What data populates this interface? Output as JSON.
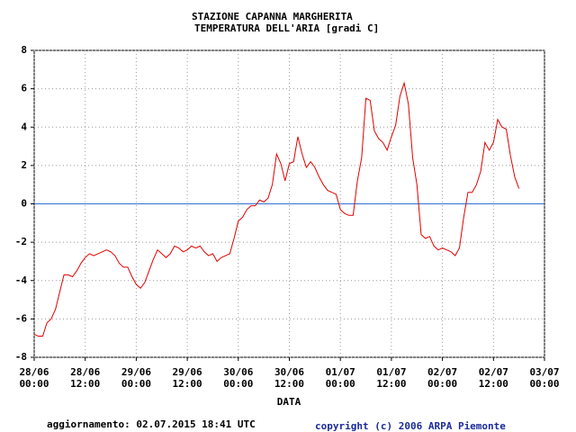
{
  "chart_data": {
    "type": "line",
    "title": "STAZIONE CAPANNA MARGHERITA",
    "subtitle": "TEMPERATURA DELL'ARIA [gradi C]",
    "x_label": "DATA",
    "footer_left": "aggiornamento: 02.07.2015 18:41 UTC",
    "footer_right": "copyright (c) 2006 ARPA Piemonte",
    "x": [
      "28/06 00:00",
      "28/06 01:00",
      "28/06 02:00",
      "28/06 03:00",
      "28/06 04:00",
      "28/06 05:00",
      "28/06 06:00",
      "28/06 07:00",
      "28/06 08:00",
      "28/06 09:00",
      "28/06 10:00",
      "28/06 11:00",
      "28/06 12:00",
      "28/06 13:00",
      "28/06 14:00",
      "28/06 15:00",
      "28/06 16:00",
      "28/06 17:00",
      "28/06 18:00",
      "28/06 19:00",
      "28/06 20:00",
      "28/06 21:00",
      "28/06 22:00",
      "28/06 23:00",
      "29/06 00:00",
      "29/06 01:00",
      "29/06 02:00",
      "29/06 03:00",
      "29/06 04:00",
      "29/06 05:00",
      "29/06 06:00",
      "29/06 07:00",
      "29/06 08:00",
      "29/06 09:00",
      "29/06 10:00",
      "29/06 11:00",
      "29/06 12:00",
      "29/06 13:00",
      "29/06 14:00",
      "29/06 15:00",
      "29/06 16:00",
      "29/06 17:00",
      "29/06 18:00",
      "29/06 19:00",
      "29/06 20:00",
      "29/06 21:00",
      "29/06 22:00",
      "29/06 23:00",
      "30/06 00:00",
      "30/06 01:00",
      "30/06 02:00",
      "30/06 03:00",
      "30/06 04:00",
      "30/06 05:00",
      "30/06 06:00",
      "30/06 07:00",
      "30/06 08:00",
      "30/06 09:00",
      "30/06 10:00",
      "30/06 11:00",
      "30/06 12:00",
      "30/06 13:00",
      "30/06 14:00",
      "30/06 15:00",
      "30/06 16:00",
      "30/06 17:00",
      "30/06 18:00",
      "30/06 19:00",
      "30/06 20:00",
      "30/06 21:00",
      "30/06 22:00",
      "30/06 23:00",
      "01/07 00:00",
      "01/07 01:00",
      "01/07 02:00",
      "01/07 03:00",
      "01/07 04:00",
      "01/07 05:00",
      "01/07 06:00",
      "01/07 07:00",
      "01/07 08:00",
      "01/07 09:00",
      "01/07 10:00",
      "01/07 11:00",
      "01/07 12:00",
      "01/07 13:00",
      "01/07 14:00",
      "01/07 15:00",
      "01/07 16:00",
      "01/07 17:00",
      "01/07 18:00",
      "01/07 19:00",
      "01/07 20:00",
      "01/07 21:00",
      "01/07 22:00",
      "01/07 23:00",
      "02/07 00:00",
      "02/07 01:00",
      "02/07 02:00",
      "02/07 03:00",
      "02/07 04:00",
      "02/07 05:00",
      "02/07 06:00",
      "02/07 07:00",
      "02/07 08:00",
      "02/07 09:00",
      "02/07 10:00",
      "02/07 11:00",
      "02/07 12:00",
      "02/07 13:00",
      "02/07 14:00",
      "02/07 15:00",
      "02/07 16:00",
      "02/07 17:00",
      "02/07 18:00"
    ],
    "series": [
      {
        "name": "TEMPERATURA DELL'ARIA",
        "color": "#e00000",
        "values": [
          -6.8,
          -6.9,
          -6.9,
          -6.2,
          -6.0,
          -5.5,
          -4.6,
          -3.7,
          -3.7,
          -3.8,
          -3.5,
          -3.1,
          -2.8,
          -2.6,
          -2.7,
          -2.6,
          -2.5,
          -2.4,
          -2.5,
          -2.7,
          -3.1,
          -3.3,
          -3.3,
          -3.8,
          -4.2,
          -4.4,
          -4.1,
          -3.5,
          -2.9,
          -2.4,
          -2.6,
          -2.8,
          -2.6,
          -2.2,
          -2.3,
          -2.5,
          -2.4,
          -2.2,
          -2.3,
          -2.2,
          -2.5,
          -2.7,
          -2.6,
          -3.0,
          -2.8,
          -2.7,
          -2.6,
          -1.8,
          -0.9,
          -0.7,
          -0.3,
          -0.1,
          -0.1,
          0.2,
          0.1,
          0.3,
          1.0,
          2.6,
          2.1,
          1.2,
          2.1,
          2.2,
          3.5,
          2.6,
          1.9,
          2.2,
          1.9,
          1.4,
          1.0,
          0.7,
          0.6,
          0.5,
          -0.3,
          -0.5,
          -0.6,
          -0.6,
          1.2,
          2.4,
          5.5,
          5.4,
          3.8,
          3.4,
          3.2,
          2.8,
          3.5,
          4.1,
          5.6,
          6.3,
          5.2,
          2.4,
          1.0,
          -1.6,
          -1.8,
          -1.7,
          -2.2,
          -2.4,
          -2.3,
          -2.4,
          -2.5,
          -2.7,
          -2.3,
          -0.7,
          0.6,
          0.6,
          1.0,
          1.7,
          3.2,
          2.8,
          3.2,
          4.4,
          4.0,
          3.9,
          2.5,
          1.4,
          0.8
        ]
      }
    ],
    "xlim": [
      "28/06 00:00",
      "03/07 00:00"
    ],
    "xticks": [
      "28/06 00:00",
      "28/06 12:00",
      "29/06 00:00",
      "29/06 12:00",
      "30/06 00:00",
      "30/06 12:00",
      "01/07 00:00",
      "01/07 12:00",
      "02/07 00:00",
      "02/07 12:00",
      "03/07 00:00"
    ],
    "ylim": [
      -8,
      8
    ],
    "yticks": [
      -8,
      -6,
      -4,
      -2,
      0,
      2,
      4,
      6,
      8
    ],
    "grid": true,
    "reference_line": 0,
    "reference_color": "#3070d0"
  }
}
